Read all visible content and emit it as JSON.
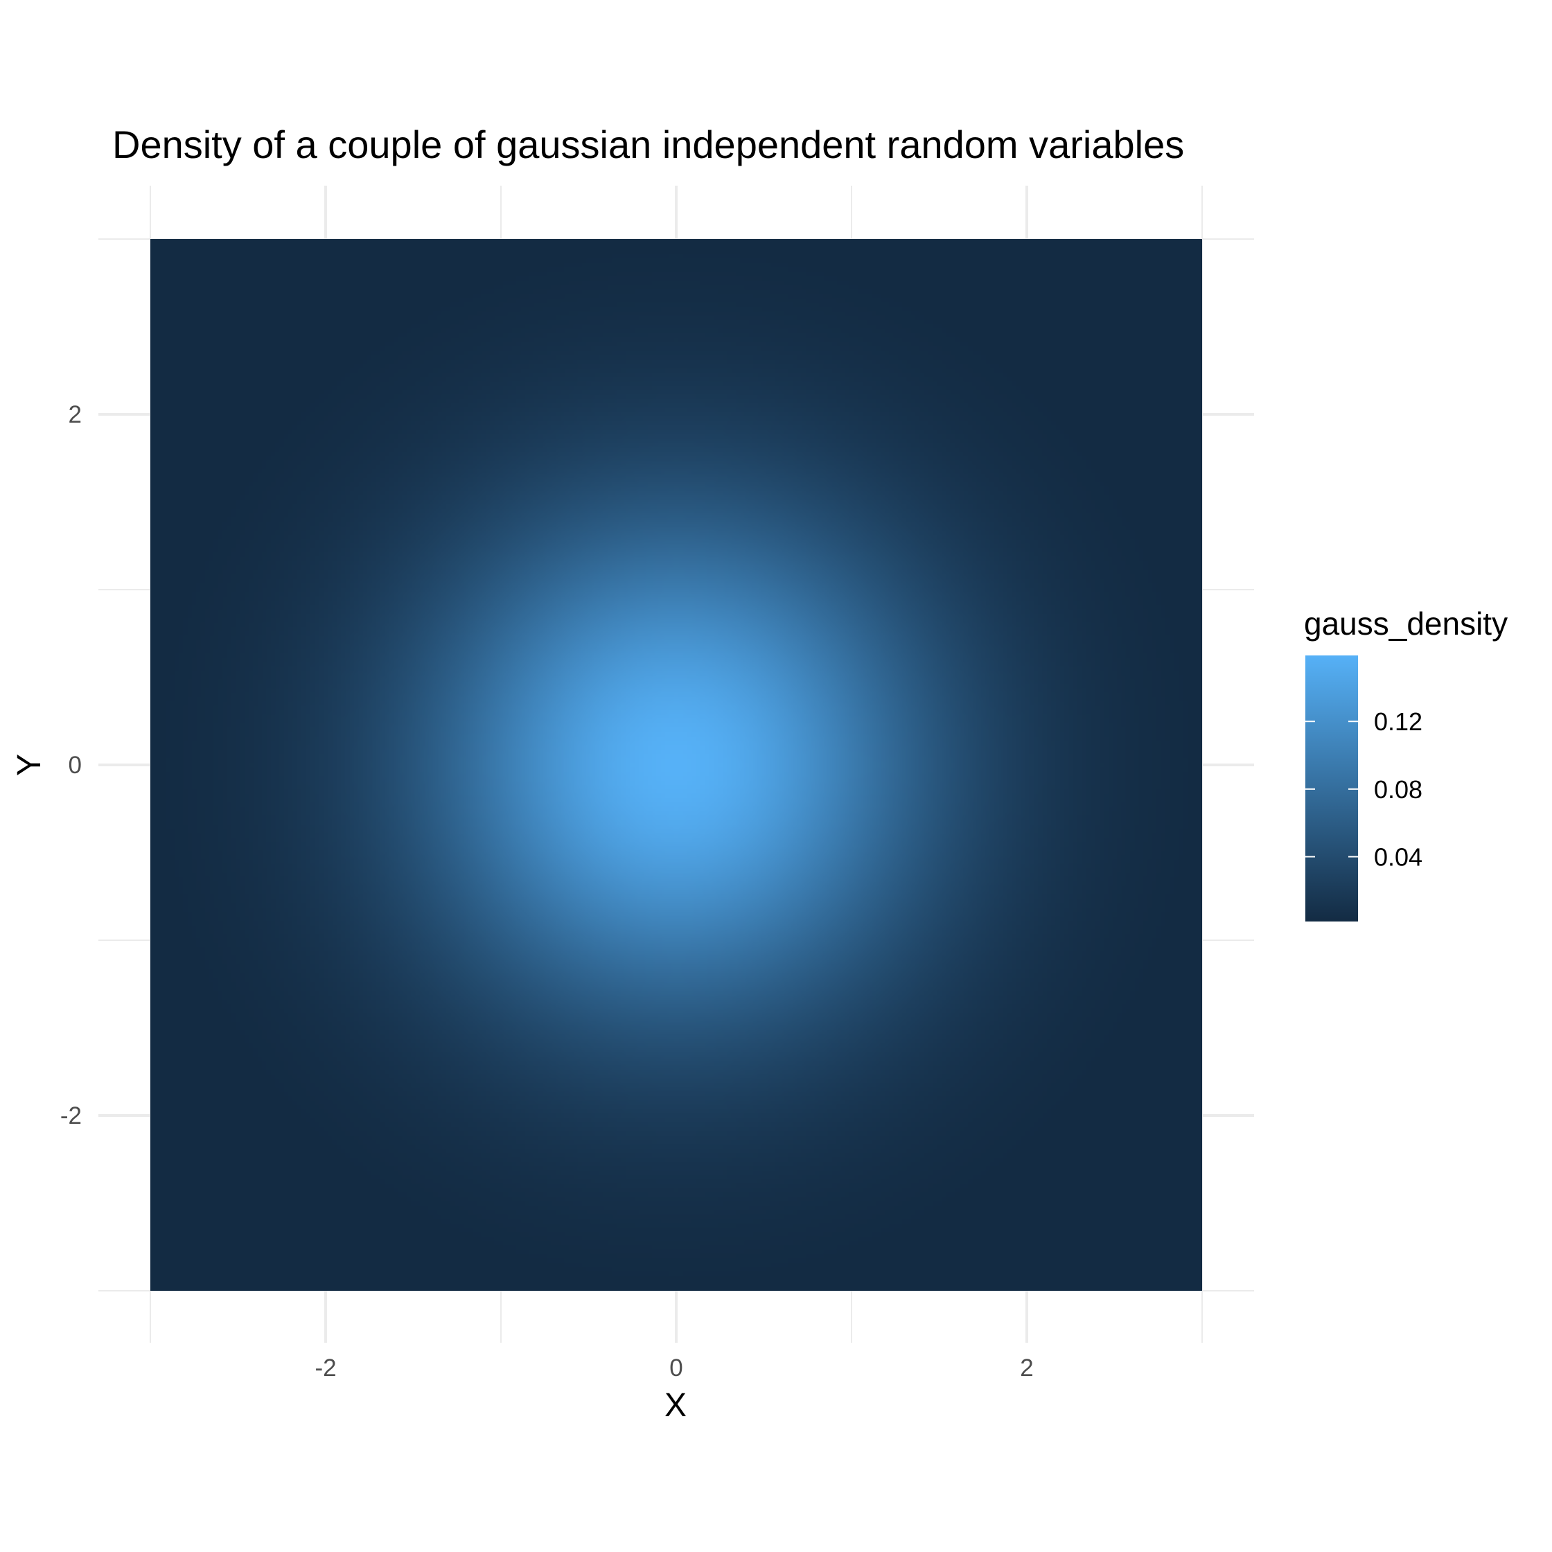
{
  "chart_data": {
    "type": "heatmap",
    "title": "Density of a couple of gaussian independent random variables",
    "xlabel": "X",
    "ylabel": "Y",
    "xlim": [
      -3,
      3
    ],
    "ylim": [
      -3,
      3
    ],
    "x_ticks": [
      -2,
      0,
      2
    ],
    "y_ticks": [
      -2,
      0,
      2
    ],
    "x_tick_labels": [
      "-2",
      "0",
      "2"
    ],
    "y_tick_labels": [
      "-2",
      "0",
      "2"
    ],
    "fill_variable": "gauss_density",
    "density": {
      "mean_x": 0,
      "mean_y": 0,
      "sd_x": 1,
      "sd_y": 1,
      "max": 0.159
    },
    "grid": true,
    "legend": {
      "title": "gauss_density",
      "position": "right",
      "breaks": [
        0.04,
        0.08,
        0.12
      ],
      "labels": [
        "0.04",
        "0.08",
        "0.12"
      ],
      "range": [
        0.0017,
        0.159
      ],
      "low_color": "#132B43",
      "high_color": "#56B1F7"
    }
  }
}
